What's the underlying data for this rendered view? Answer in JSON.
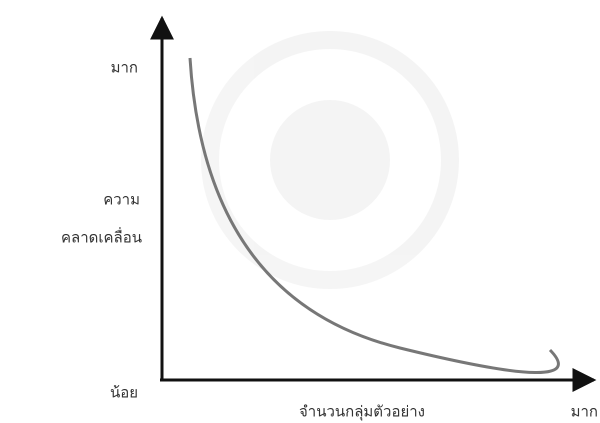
{
  "y_axis": {
    "high": "มาก",
    "label": [
      "ความ",
      "คลาดเคลื่อน"
    ],
    "low": "น้อย"
  },
  "x_axis": {
    "label": "จำนวนกลุ่มตัวอย่าง",
    "high": "มาก"
  }
}
